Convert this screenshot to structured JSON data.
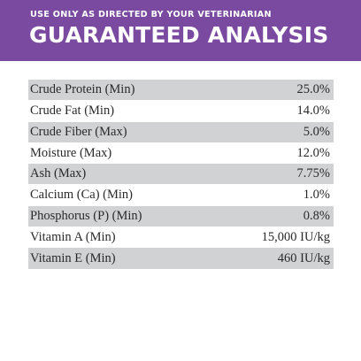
{
  "header": {
    "subtitle": "USE ONLY AS DIRECTED BY YOUR VETERINARIAN",
    "title": "GUARANTEED ANALYSIS",
    "background_color": "#7a4aa0"
  },
  "analysis": {
    "stripe_color": "#d1d2d4",
    "rows": [
      {
        "label": "Crude Protein (Min)",
        "value": "25.0%"
      },
      {
        "label": "Crude Fat (Min)",
        "value": "14.0%"
      },
      {
        "label": "Crude Fiber (Max)",
        "value": "5.0%"
      },
      {
        "label": "Moisture (Max)",
        "value": "12.0%"
      },
      {
        "label": "Ash (Max)",
        "value": "7.75%"
      },
      {
        "label": "Calcium (Ca) (Min)",
        "value": "1.0%"
      },
      {
        "label": "Phosphorus (P) (Min)",
        "value": "0.8%"
      },
      {
        "label": "Vitamin A (Min)",
        "value": "15,000 IU/kg"
      },
      {
        "label": "Vitamin E (Min)",
        "value": "460 IU/kg"
      }
    ]
  }
}
